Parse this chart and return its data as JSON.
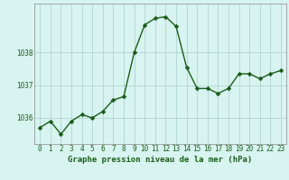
{
  "x": [
    0,
    1,
    2,
    3,
    4,
    5,
    6,
    7,
    8,
    9,
    10,
    11,
    12,
    13,
    14,
    15,
    16,
    17,
    18,
    19,
    20,
    21,
    22,
    23
  ],
  "y": [
    1035.7,
    1035.9,
    1035.5,
    1035.9,
    1036.1,
    1036.0,
    1036.2,
    1036.55,
    1036.65,
    1038.0,
    1038.85,
    1039.05,
    1039.1,
    1038.8,
    1037.55,
    1036.9,
    1036.9,
    1036.75,
    1036.9,
    1037.35,
    1037.35,
    1037.2,
    1037.35,
    1037.45
  ],
  "line_color": "#1a5c1a",
  "marker_color": "#1a5c1a",
  "bg_color": "#d8f4f0",
  "grid_color": "#aacece",
  "title": "Graphe pression niveau de la mer (hPa)",
  "yticks": [
    1036,
    1037,
    1038
  ],
  "xtick_labels": [
    "0",
    "1",
    "2",
    "3",
    "4",
    "5",
    "6",
    "7",
    "8",
    "9",
    "10",
    "11",
    "12",
    "13",
    "14",
    "15",
    "16",
    "17",
    "18",
    "19",
    "20",
    "21",
    "22",
    "23"
  ],
  "ylim": [
    1035.2,
    1039.5
  ],
  "xlim": [
    -0.5,
    23.5
  ],
  "tick_fontsize": 5.5,
  "title_fontsize": 6.5,
  "title_fontweight": "bold",
  "linewidth": 1.0,
  "markersize": 2.8
}
